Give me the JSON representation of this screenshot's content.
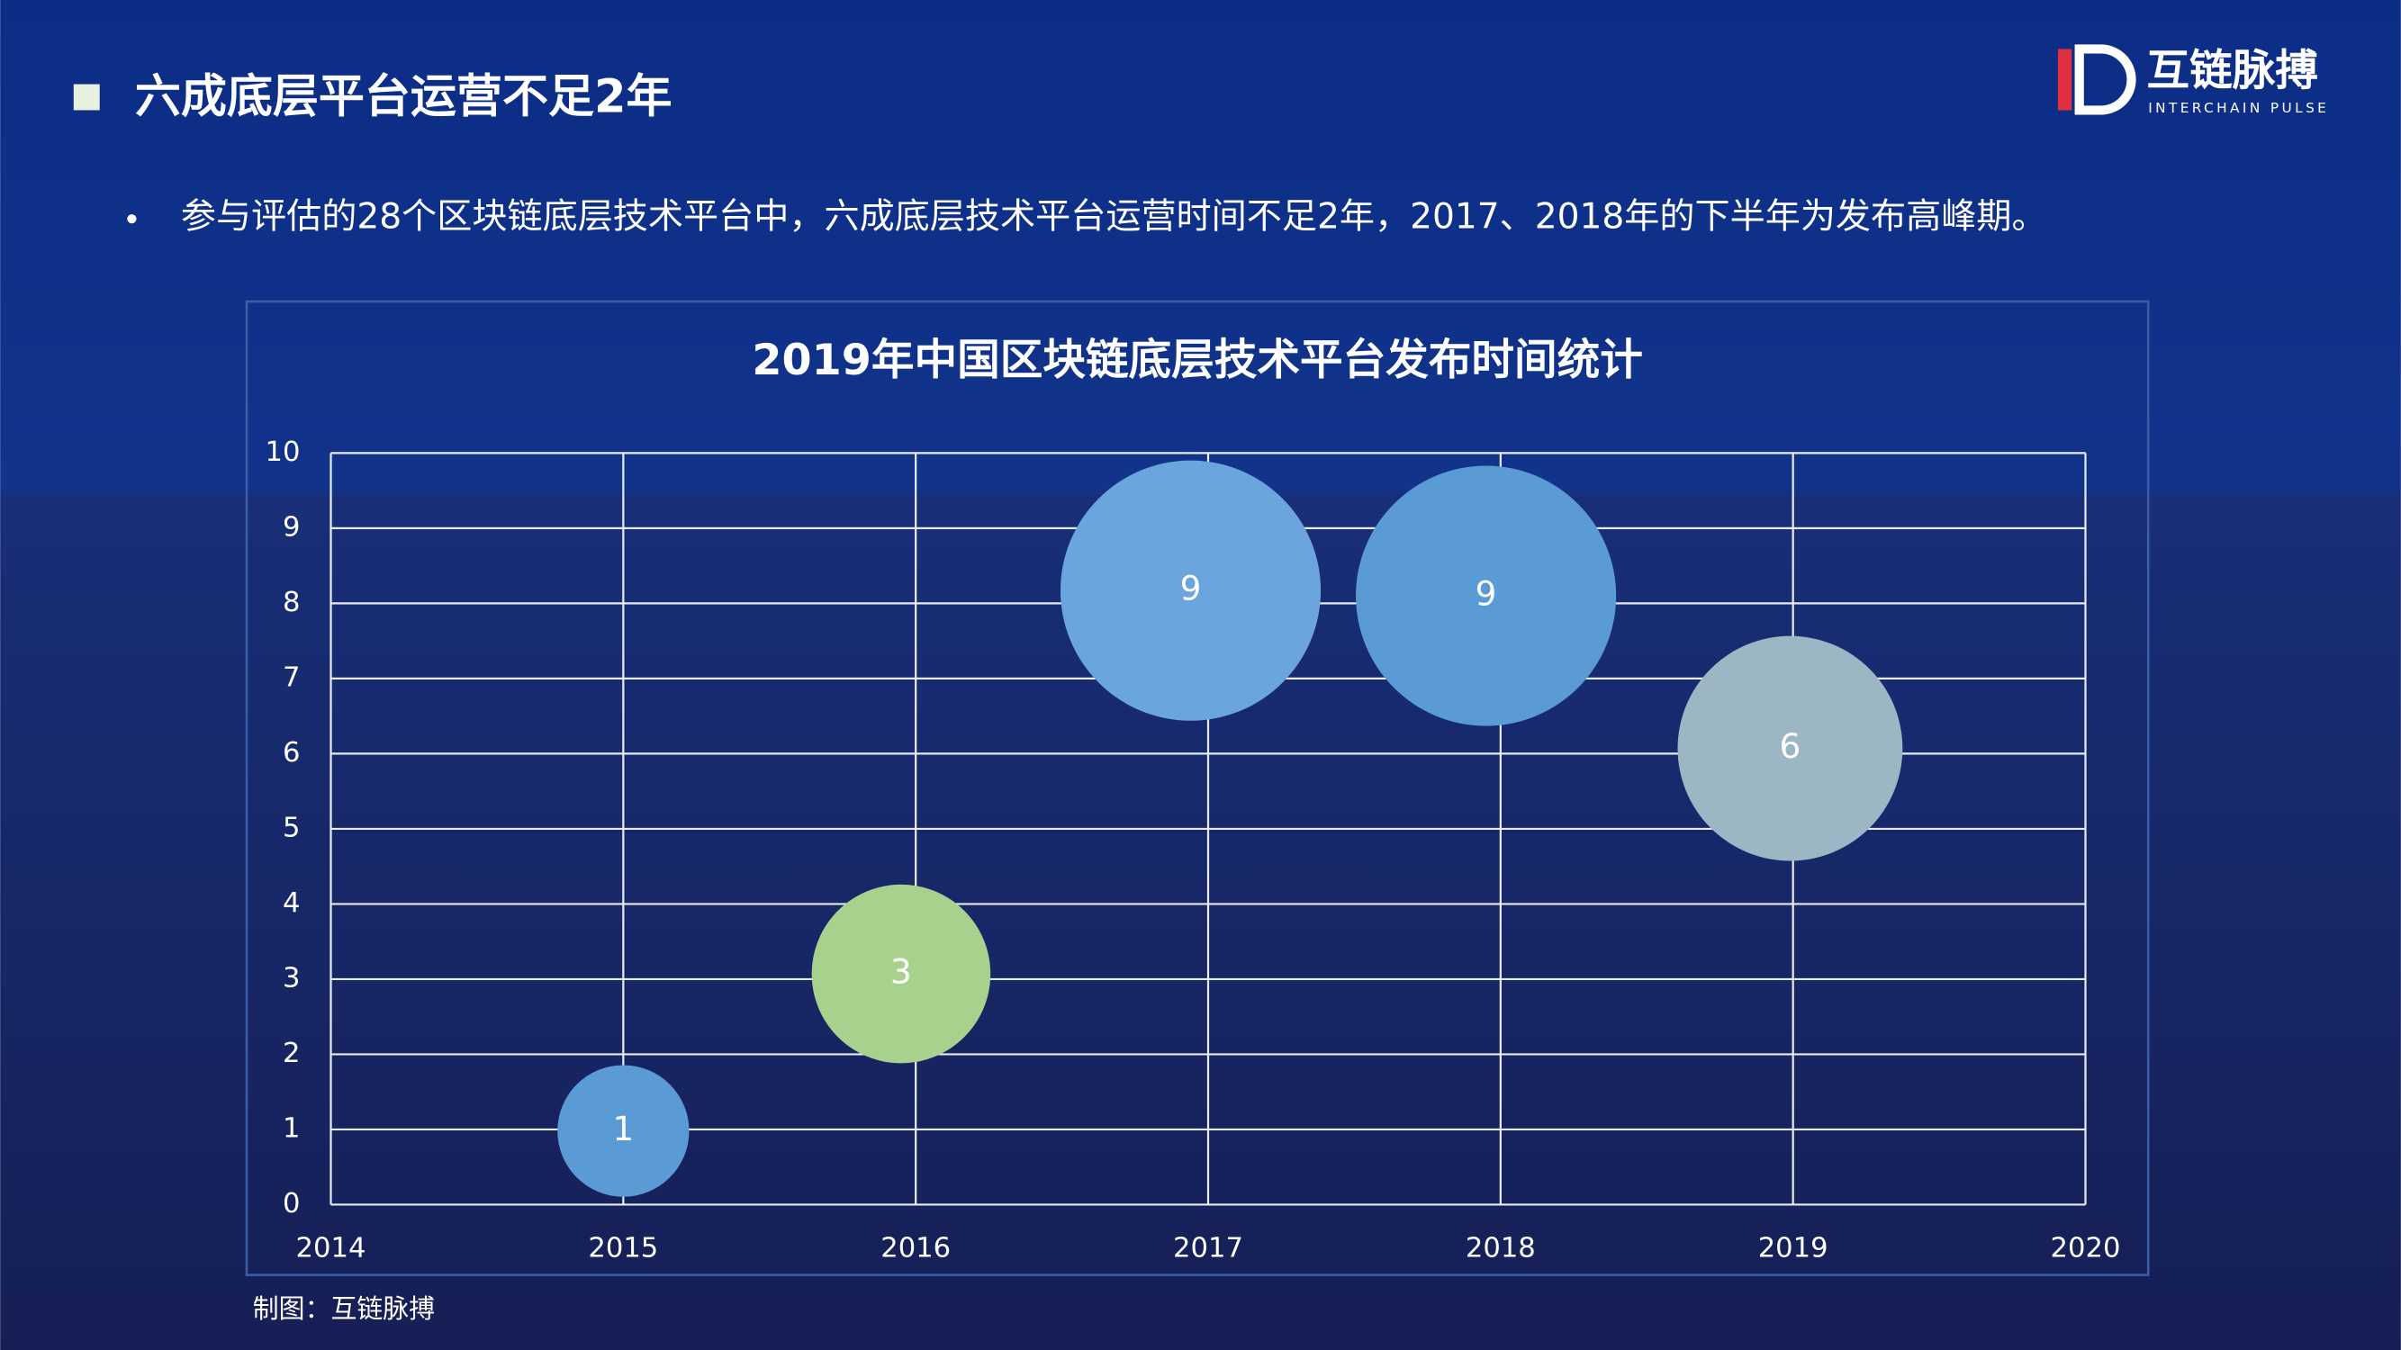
{
  "header": {
    "title": "六成底层平台运营不足2年",
    "bullet": "参与评估的28个区块链底层技术平台中，六成底层技术平台运营时间不足2年，2017、2018年的下半年为发布高峰期。"
  },
  "logo": {
    "name": "互链脉搏",
    "subtitle": "INTERCHAIN PULSE"
  },
  "source": "制图：互链脉搏",
  "chart_data": {
    "type": "bubble",
    "title": "2019年中国区块链底层技术平台发布时间统计",
    "x": [
      2015.0,
      2015.95,
      2016.94,
      2017.95,
      2018.99
    ],
    "values": [
      0.98,
      3.07,
      8.17,
      8.1,
      6.07
    ],
    "sizes": [
      1,
      3,
      9,
      9,
      6
    ],
    "colors": [
      "#5b9bd5",
      "#a9d18e",
      "#6aa6dd",
      "#5b9bd5",
      "#9db6c4"
    ],
    "xlim": [
      2014,
      2020
    ],
    "xticks": [
      2014,
      2015,
      2016,
      2017,
      2018,
      2019,
      2020
    ],
    "ylim": [
      0,
      10
    ],
    "yticks": [
      0,
      1,
      2,
      3,
      4,
      5,
      6,
      7,
      8,
      9,
      10
    ],
    "grid": true
  }
}
